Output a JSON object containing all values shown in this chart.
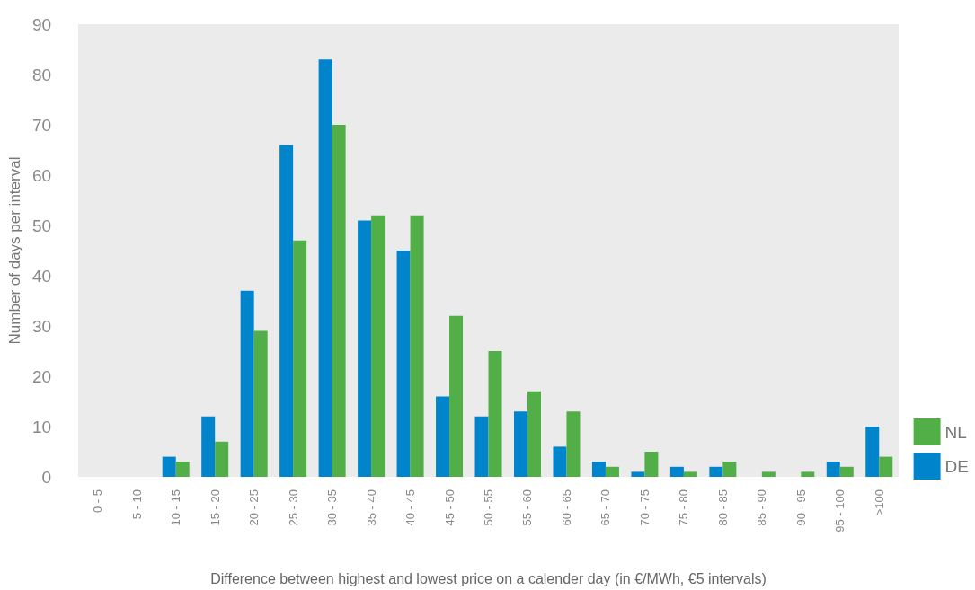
{
  "chart_data": {
    "type": "bar",
    "xlabel": "Difference between highest and lowest price on a calender day (in €/MWh, €5 intervals)",
    "ylabel": "Number of days per interval",
    "categories": [
      "0 - 5",
      "5 - 10",
      "10 - 15",
      "15 - 20",
      "20 - 25",
      "25 - 30",
      "30 - 35",
      "35 - 40",
      "40 - 45",
      "45 - 50",
      "50 - 55",
      "55 - 60",
      "60 - 65",
      "65 - 70",
      "70 - 75",
      "75 - 80",
      "80 - 85",
      "85 - 90",
      "90 - 95",
      "95 - 100",
      ">100"
    ],
    "series": [
      {
        "name": "DE",
        "color": "#0085cc",
        "values": [
          0,
          0,
          4,
          12,
          37,
          66,
          83,
          51,
          45,
          16,
          12,
          13,
          6,
          3,
          1,
          2,
          2,
          0,
          0,
          3,
          10
        ]
      },
      {
        "name": "NL",
        "color": "#52ae46",
        "values": [
          0,
          0,
          3,
          7,
          29,
          47,
          70,
          52,
          52,
          32,
          25,
          17,
          13,
          2,
          5,
          1,
          3,
          1,
          1,
          2,
          4
        ]
      }
    ],
    "ylim": [
      0,
      90
    ],
    "yticks": [
      0,
      10,
      20,
      30,
      40,
      50,
      60,
      70,
      80,
      90
    ],
    "grid": false,
    "legend": "right"
  }
}
